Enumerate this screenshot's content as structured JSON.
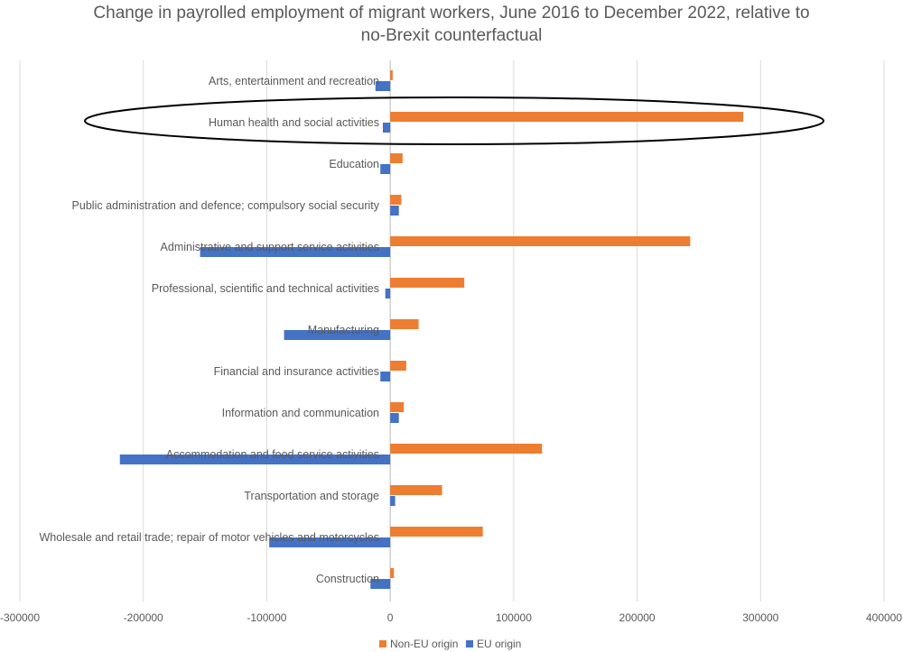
{
  "chart_data": {
    "type": "bar",
    "orientation": "horizontal",
    "title": "Change in payrolled employment of migrant workers,  June 2016 to December 2022, relative to no-Brexit counterfactual",
    "title_lines": [
      "Change in payrolled employment of migrant workers,  June 2016 to December 2022, relative to",
      "no-Brexit counterfactual"
    ],
    "categories": [
      "Arts, entertainment and recreation",
      "Human health and social activities",
      "Education",
      "Public administration and defence; compulsory social security",
      "Administrative and support service activities",
      "Professional, scientific and technical activities",
      "Manufacturing",
      "Financial and insurance activities",
      "Information and communication",
      "Accommodation and food service activities",
      "Transportation and storage",
      "Wholesale and retail trade; repair of motor vehicles and motorcycles",
      "Construction"
    ],
    "series": [
      {
        "name": "Non-EU origin",
        "color": "#ED7D31",
        "values": [
          2000,
          286000,
          10000,
          9000,
          243000,
          60000,
          23000,
          13000,
          11000,
          123000,
          42000,
          75000,
          3000
        ]
      },
      {
        "name": "EU origin",
        "color": "#4472C4",
        "values": [
          -12000,
          -6000,
          -8000,
          7000,
          -154000,
          -4000,
          -86000,
          -8000,
          7000,
          -219000,
          4000,
          -98000,
          -16000
        ]
      }
    ],
    "xlim": [
      -300000,
      400000
    ],
    "xticks": [
      -300000,
      -200000,
      -100000,
      0,
      100000,
      200000,
      300000,
      400000
    ],
    "xtick_labels": [
      "-300000",
      "-200000",
      "-100000",
      "0",
      "100000",
      "200000",
      "300000",
      "400000"
    ],
    "xlabel": "",
    "ylabel": "",
    "grid": "vertical",
    "legend_position": "bottom",
    "annotations": [
      {
        "type": "ellipse",
        "target_category": "Human health and social activities",
        "color": "#000000"
      }
    ]
  }
}
